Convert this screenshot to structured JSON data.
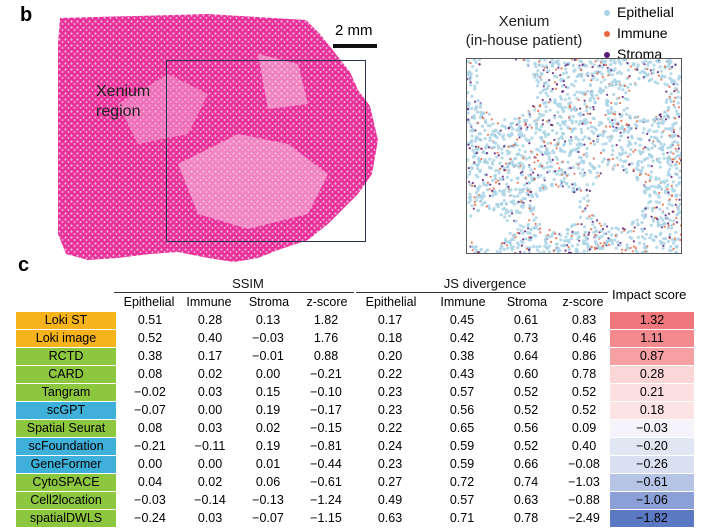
{
  "panels": {
    "b": "b",
    "c": "c"
  },
  "histology": {
    "scale_label": "2 mm",
    "region_label_line1": "Xenium",
    "region_label_line2": "region"
  },
  "xenium": {
    "title_line1": "Xenium",
    "title_line2": "(in-house patient)",
    "legend": [
      {
        "label": "Epithelial",
        "color": "#a9d4e6"
      },
      {
        "label": "Immune",
        "color": "#e8663d"
      },
      {
        "label": "Stroma",
        "color": "#5a1b7a"
      }
    ]
  },
  "table": {
    "groups": {
      "ssim": "SSIM",
      "js": "JS divergence",
      "impact": "Impact score"
    },
    "columns": [
      "Epithelial",
      "Immune",
      "Stroma",
      "z-score",
      "Epithelial",
      "Immune",
      "Stroma",
      "z-score"
    ],
    "rows": [
      {
        "method": "Loki ST",
        "color": "#f7b31b",
        "vals": [
          "0.51",
          "0.28",
          "0.13",
          "1.82",
          "0.17",
          "0.45",
          "0.61",
          "0.83"
        ],
        "impact": "1.32",
        "impact_color": "#f0787c"
      },
      {
        "method": "Loki image",
        "color": "#f7b31b",
        "vals": [
          "0.52",
          "0.40",
          "−0.03",
          "1.76",
          "0.18",
          "0.42",
          "0.73",
          "0.46"
        ],
        "impact": "1.11",
        "impact_color": "#f38a8e"
      },
      {
        "method": "RCTD",
        "color": "#8dc63f",
        "vals": [
          "0.38",
          "0.17",
          "−0.01",
          "0.88",
          "0.20",
          "0.38",
          "0.64",
          "0.86"
        ],
        "impact": "0.87",
        "impact_color": "#f6a0a3"
      },
      {
        "method": "CARD",
        "color": "#8dc63f",
        "vals": [
          "0.08",
          "0.02",
          "0.00",
          "−0.21",
          "0.22",
          "0.43",
          "0.60",
          "0.78"
        ],
        "impact": "0.28",
        "impact_color": "#fbd6d7"
      },
      {
        "method": "Tangram",
        "color": "#8dc63f",
        "vals": [
          "−0.02",
          "0.03",
          "0.15",
          "−0.10",
          "0.23",
          "0.57",
          "0.52",
          "0.52"
        ],
        "impact": "0.21",
        "impact_color": "#fcdfe0"
      },
      {
        "method": "scGPT",
        "color": "#3fb0d9",
        "vals": [
          "−0.07",
          "0.00",
          "0.19",
          "−0.17",
          "0.23",
          "0.56",
          "0.52",
          "0.52"
        ],
        "impact": "0.18",
        "impact_color": "#fce4e5"
      },
      {
        "method": "Spatial Seurat",
        "color": "#8dc63f",
        "vals": [
          "0.08",
          "0.03",
          "0.02",
          "−0.15",
          "0.22",
          "0.65",
          "0.56",
          "0.09"
        ],
        "impact": "−0.03",
        "impact_color": "#f4f4fa"
      },
      {
        "method": "scFoundation",
        "color": "#3fb0d9",
        "vals": [
          "−0.21",
          "−0.11",
          "0.19",
          "−0.81",
          "0.24",
          "0.59",
          "0.52",
          "0.40"
        ],
        "impact": "−0.20",
        "impact_color": "#e1e6f3"
      },
      {
        "method": "GeneFormer",
        "color": "#3fb0d9",
        "vals": [
          "0.00",
          "0.00",
          "0.01",
          "−0.44",
          "0.23",
          "0.59",
          "0.66",
          "−0.08"
        ],
        "impact": "−0.26",
        "impact_color": "#d9e0f1"
      },
      {
        "method": "CytoSPACE",
        "color": "#8dc63f",
        "vals": [
          "0.04",
          "0.02",
          "0.06",
          "−0.61",
          "0.27",
          "0.72",
          "0.74",
          "−1.03"
        ],
        "impact": "−0.61",
        "impact_color": "#b6c4e6"
      },
      {
        "method": "Cell2location",
        "color": "#8dc63f",
        "vals": [
          "−0.03",
          "−0.14",
          "−0.13",
          "−1.24",
          "0.49",
          "0.57",
          "0.63",
          "−0.88"
        ],
        "impact": "−1.06",
        "impact_color": "#8ba0d6"
      },
      {
        "method": "spatialDWLS",
        "color": "#8dc63f",
        "vals": [
          "−0.24",
          "0.03",
          "−0.07",
          "−1.15",
          "0.63",
          "0.71",
          "0.78",
          "−2.49"
        ],
        "impact": "−1.82",
        "impact_color": "#5b78c2"
      }
    ]
  }
}
